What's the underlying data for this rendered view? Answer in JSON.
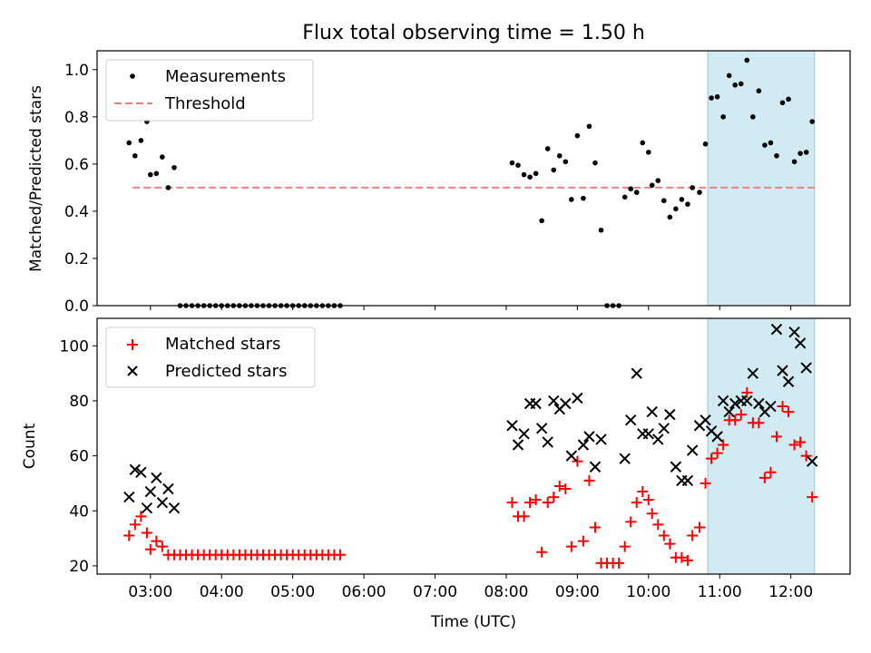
{
  "title": "Flux total observing time = 1.50 h",
  "colors": {
    "highlight": "#add8e6",
    "threshold": "#f08080",
    "matched": "#ff0000",
    "predicted": "#000000",
    "measurement": "#000000"
  },
  "chart_data": [
    {
      "type": "scatter",
      "ylabel": "Matched/Predicted stars",
      "xlim": [
        "02:15",
        "12:50"
      ],
      "ylim": [
        0,
        1.08
      ],
      "yticks": [
        "0.0",
        "0.2",
        "0.4",
        "0.6",
        "0.8",
        "1.0"
      ],
      "highlight_band": [
        "10:50",
        "12:20"
      ],
      "legend_position": "upper-left",
      "threshold": {
        "name": "Threshold",
        "y": 0.5,
        "x": [
          "02:45",
          "12:20"
        ]
      },
      "series": [
        {
          "name": "Measurements",
          "points": [
            [
              "02:42",
              0.69
            ],
            [
              "02:47",
              0.635
            ],
            [
              "02:52",
              0.7
            ],
            [
              "02:57",
              0.78
            ],
            [
              "03:00",
              0.555
            ],
            [
              "03:05",
              0.56
            ],
            [
              "03:10",
              0.63
            ],
            [
              "03:15",
              0.5
            ],
            [
              "03:20",
              0.585
            ],
            [
              "03:25",
              0.0
            ],
            [
              "03:30",
              0.0
            ],
            [
              "03:35",
              0.0
            ],
            [
              "03:40",
              0.0
            ],
            [
              "03:45",
              0.0
            ],
            [
              "03:50",
              0.0
            ],
            [
              "03:55",
              0.0
            ],
            [
              "04:00",
              0.0
            ],
            [
              "04:05",
              0.0
            ],
            [
              "04:10",
              0.0
            ],
            [
              "04:15",
              0.0
            ],
            [
              "04:20",
              0.0
            ],
            [
              "04:25",
              0.0
            ],
            [
              "04:30",
              0.0
            ],
            [
              "04:35",
              0.0
            ],
            [
              "04:40",
              0.0
            ],
            [
              "04:45",
              0.0
            ],
            [
              "04:50",
              0.0
            ],
            [
              "04:55",
              0.0
            ],
            [
              "05:00",
              0.0
            ],
            [
              "05:05",
              0.0
            ],
            [
              "05:10",
              0.0
            ],
            [
              "05:15",
              0.0
            ],
            [
              "05:20",
              0.0
            ],
            [
              "05:25",
              0.0
            ],
            [
              "05:30",
              0.0
            ],
            [
              "05:35",
              0.0
            ],
            [
              "05:40",
              0.0
            ],
            [
              "08:05",
              0.605
            ],
            [
              "08:10",
              0.595
            ],
            [
              "08:15",
              0.555
            ],
            [
              "08:20",
              0.545
            ],
            [
              "08:25",
              0.56
            ],
            [
              "08:30",
              0.36
            ],
            [
              "08:35",
              0.665
            ],
            [
              "08:40",
              0.575
            ],
            [
              "08:45",
              0.635
            ],
            [
              "08:50",
              0.61
            ],
            [
              "08:55",
              0.45
            ],
            [
              "09:00",
              0.72
            ],
            [
              "09:05",
              0.455
            ],
            [
              "09:10",
              0.76
            ],
            [
              "09:15",
              0.605
            ],
            [
              "09:20",
              0.32
            ],
            [
              "09:25",
              0.0
            ],
            [
              "09:30",
              0.0
            ],
            [
              "09:35",
              0.0
            ],
            [
              "09:40",
              0.46
            ],
            [
              "09:45",
              0.495
            ],
            [
              "09:50",
              0.48
            ],
            [
              "09:55",
              0.69
            ],
            [
              "10:00",
              0.65
            ],
            [
              "10:03",
              0.51
            ],
            [
              "10:08",
              0.53
            ],
            [
              "10:13",
              0.445
            ],
            [
              "10:18",
              0.375
            ],
            [
              "10:23",
              0.41
            ],
            [
              "10:28",
              0.45
            ],
            [
              "10:33",
              0.43
            ],
            [
              "10:37",
              0.5
            ],
            [
              "10:43",
              0.48
            ],
            [
              "10:48",
              0.685
            ],
            [
              "10:53",
              0.88
            ],
            [
              "10:58",
              0.885
            ],
            [
              "11:03",
              0.8
            ],
            [
              "11:08",
              0.975
            ],
            [
              "11:13",
              0.935
            ],
            [
              "11:18",
              0.94
            ],
            [
              "11:23",
              1.04
            ],
            [
              "11:28",
              0.8
            ],
            [
              "11:33",
              0.91
            ],
            [
              "11:38",
              0.68
            ],
            [
              "11:43",
              0.69
            ],
            [
              "11:48",
              0.635
            ],
            [
              "11:53",
              0.86
            ],
            [
              "11:58",
              0.875
            ],
            [
              "12:03",
              0.61
            ],
            [
              "12:08",
              0.645
            ],
            [
              "12:13",
              0.65
            ],
            [
              "12:18",
              0.78
            ]
          ]
        }
      ]
    },
    {
      "type": "scatter",
      "xlabel": "Time (UTC)",
      "ylabel": "Count",
      "xlim": [
        "02:15",
        "12:50"
      ],
      "ylim": [
        17,
        110
      ],
      "xticks": [
        "03:00",
        "04:00",
        "05:00",
        "06:00",
        "07:00",
        "08:00",
        "09:00",
        "10:00",
        "11:00",
        "12:00"
      ],
      "yticks": [
        "20",
        "40",
        "60",
        "80",
        "100"
      ],
      "highlight_band": [
        "10:50",
        "12:20"
      ],
      "legend_position": "upper-left",
      "series": [
        {
          "name": "Matched stars",
          "marker": "plus",
          "points": [
            [
              "02:42",
              31
            ],
            [
              "02:47",
              35
            ],
            [
              "02:52",
              38
            ],
            [
              "02:57",
              32
            ],
            [
              "03:00",
              26
            ],
            [
              "03:05",
              29
            ],
            [
              "03:10",
              27
            ],
            [
              "03:15",
              24
            ],
            [
              "03:20",
              24
            ],
            [
              "03:25",
              24
            ],
            [
              "03:30",
              24
            ],
            [
              "03:35",
              24
            ],
            [
              "03:40",
              24
            ],
            [
              "03:45",
              24
            ],
            [
              "03:50",
              24
            ],
            [
              "03:55",
              24
            ],
            [
              "04:00",
              24
            ],
            [
              "04:05",
              24
            ],
            [
              "04:10",
              24
            ],
            [
              "04:15",
              24
            ],
            [
              "04:20",
              24
            ],
            [
              "04:25",
              24
            ],
            [
              "04:30",
              24
            ],
            [
              "04:35",
              24
            ],
            [
              "04:40",
              24
            ],
            [
              "04:45",
              24
            ],
            [
              "04:50",
              24
            ],
            [
              "04:55",
              24
            ],
            [
              "05:00",
              24
            ],
            [
              "05:05",
              24
            ],
            [
              "05:10",
              24
            ],
            [
              "05:15",
              24
            ],
            [
              "05:20",
              24
            ],
            [
              "05:25",
              24
            ],
            [
              "05:30",
              24
            ],
            [
              "05:35",
              24
            ],
            [
              "05:40",
              24
            ],
            [
              "08:05",
              43
            ],
            [
              "08:10",
              38
            ],
            [
              "08:15",
              38
            ],
            [
              "08:20",
              43
            ],
            [
              "08:25",
              44
            ],
            [
              "08:30",
              25
            ],
            [
              "08:35",
              43
            ],
            [
              "08:40",
              45
            ],
            [
              "08:45",
              49
            ],
            [
              "08:50",
              48
            ],
            [
              "08:55",
              27
            ],
            [
              "09:00",
              58
            ],
            [
              "09:05",
              29
            ],
            [
              "09:10",
              51
            ],
            [
              "09:15",
              34
            ],
            [
              "09:20",
              21
            ],
            [
              "09:25",
              21
            ],
            [
              "09:30",
              21
            ],
            [
              "09:35",
              21
            ],
            [
              "09:40",
              27
            ],
            [
              "09:45",
              36
            ],
            [
              "09:50",
              43
            ],
            [
              "09:55",
              47
            ],
            [
              "10:00",
              44
            ],
            [
              "10:03",
              39
            ],
            [
              "10:08",
              35
            ],
            [
              "10:13",
              31
            ],
            [
              "10:18",
              28
            ],
            [
              "10:23",
              23
            ],
            [
              "10:28",
              23
            ],
            [
              "10:33",
              22
            ],
            [
              "10:37",
              31
            ],
            [
              "10:43",
              34
            ],
            [
              "10:48",
              50
            ],
            [
              "10:53",
              59
            ],
            [
              "10:58",
              61
            ],
            [
              "11:03",
              64
            ],
            [
              "11:08",
              73
            ],
            [
              "11:13",
              73
            ],
            [
              "11:18",
              75
            ],
            [
              "11:23",
              83
            ],
            [
              "11:28",
              72
            ],
            [
              "11:33",
              72
            ],
            [
              "11:38",
              52
            ],
            [
              "11:43",
              54
            ],
            [
              "11:48",
              67
            ],
            [
              "11:53",
              78
            ],
            [
              "11:58",
              76
            ],
            [
              "12:03",
              64
            ],
            [
              "12:08",
              65
            ],
            [
              "12:13",
              60
            ],
            [
              "12:18",
              45
            ]
          ]
        },
        {
          "name": "Predicted stars",
          "marker": "x",
          "points": [
            [
              "02:42",
              45
            ],
            [
              "02:47",
              55
            ],
            [
              "02:52",
              54
            ],
            [
              "02:57",
              41
            ],
            [
              "03:00",
              47
            ],
            [
              "03:05",
              52
            ],
            [
              "03:10",
              43
            ],
            [
              "03:15",
              48
            ],
            [
              "03:20",
              41
            ],
            [
              "08:05",
              71
            ],
            [
              "08:10",
              64
            ],
            [
              "08:15",
              68
            ],
            [
              "08:20",
              79
            ],
            [
              "08:25",
              79
            ],
            [
              "08:30",
              70
            ],
            [
              "08:35",
              65
            ],
            [
              "08:40",
              80
            ],
            [
              "08:45",
              77
            ],
            [
              "08:50",
              79
            ],
            [
              "08:55",
              60
            ],
            [
              "09:00",
              81
            ],
            [
              "09:05",
              64
            ],
            [
              "09:10",
              67
            ],
            [
              "09:15",
              56
            ],
            [
              "09:20",
              66
            ],
            [
              "09:40",
              59
            ],
            [
              "09:45",
              73
            ],
            [
              "09:50",
              90
            ],
            [
              "09:55",
              68
            ],
            [
              "10:00",
              68
            ],
            [
              "10:03",
              76
            ],
            [
              "10:08",
              66
            ],
            [
              "10:13",
              70
            ],
            [
              "10:18",
              75
            ],
            [
              "10:23",
              56
            ],
            [
              "10:28",
              51
            ],
            [
              "10:33",
              51
            ],
            [
              "10:37",
              62
            ],
            [
              "10:43",
              71
            ],
            [
              "10:48",
              73
            ],
            [
              "10:53",
              69
            ],
            [
              "10:58",
              67
            ],
            [
              "11:03",
              80
            ],
            [
              "11:08",
              76
            ],
            [
              "11:13",
              79
            ],
            [
              "11:18",
              80
            ],
            [
              "11:23",
              80
            ],
            [
              "11:28",
              90
            ],
            [
              "11:33",
              79
            ],
            [
              "11:38",
              76
            ],
            [
              "11:43",
              78
            ],
            [
              "11:48",
              106
            ],
            [
              "11:53",
              91
            ],
            [
              "11:58",
              87
            ],
            [
              "12:03",
              105
            ],
            [
              "12:08",
              101
            ],
            [
              "12:13",
              92
            ],
            [
              "12:18",
              58
            ]
          ]
        }
      ]
    }
  ]
}
